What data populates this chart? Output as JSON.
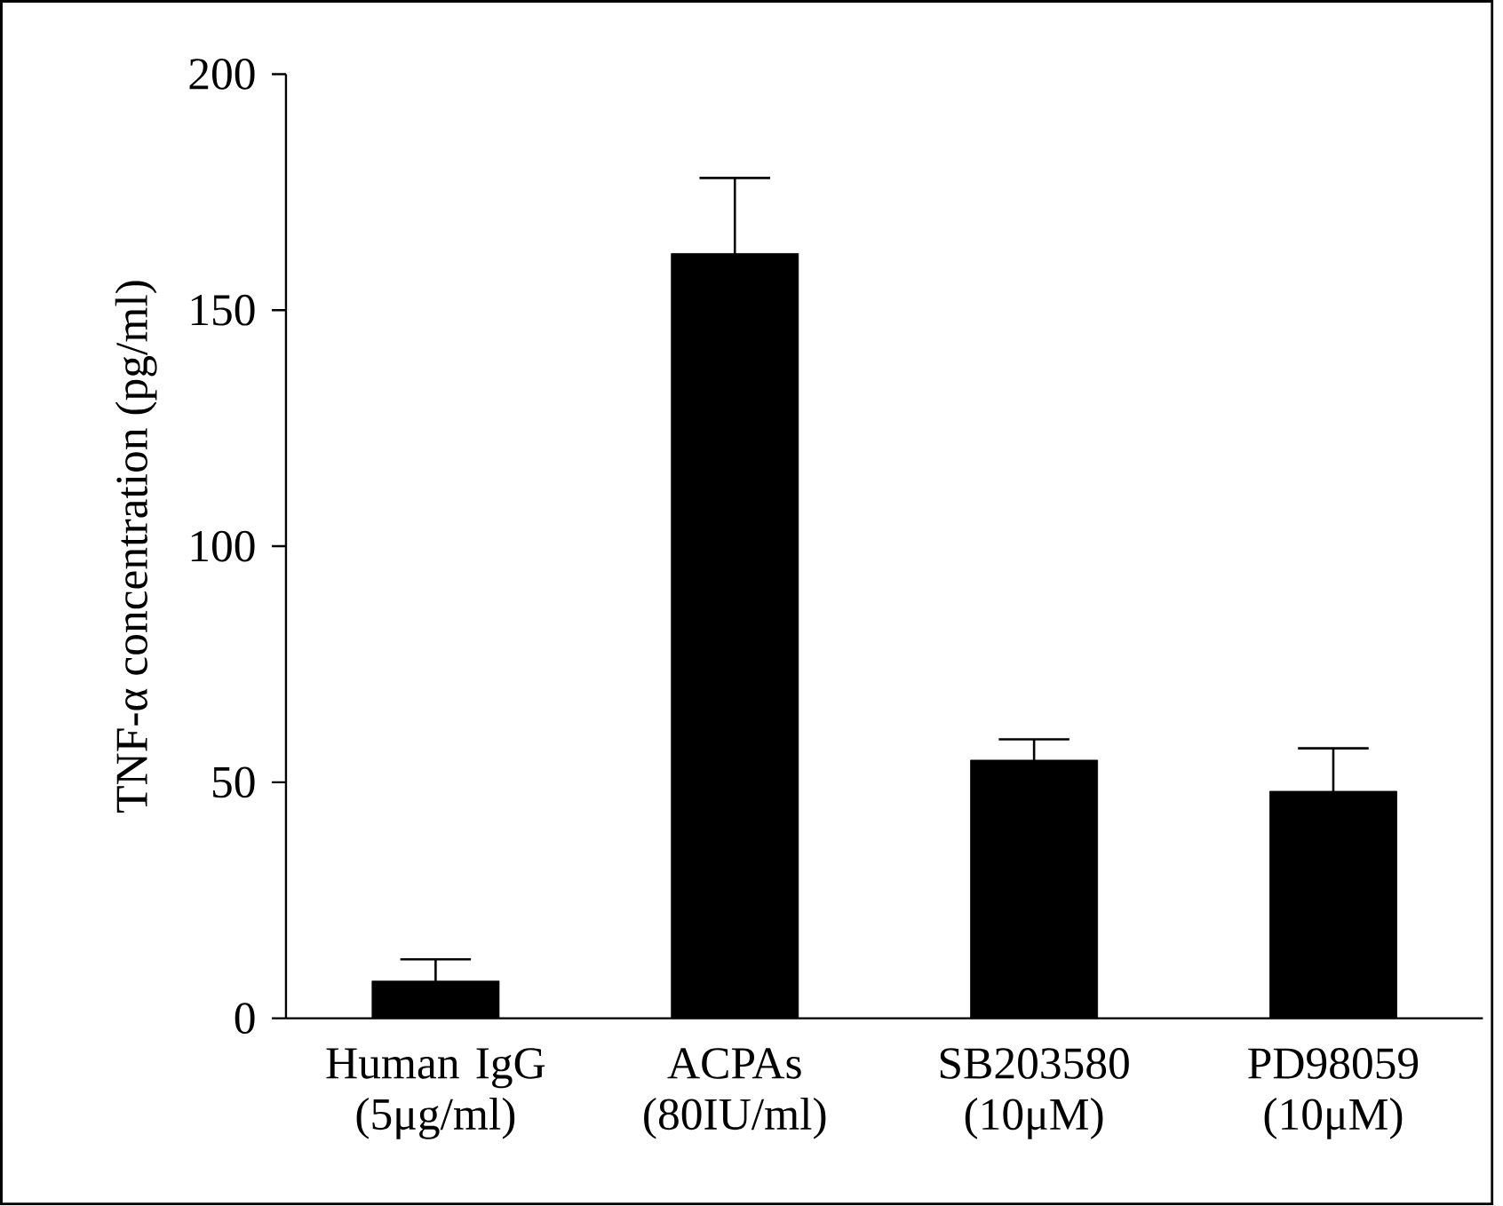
{
  "chart_data": {
    "type": "bar",
    "ylabel": "TNF-α concentration (pg/ml)",
    "categories": [
      "Human IgG (5μg/ml)",
      "ACPAs (80IU/ml)",
      "SB203580 (10μM)",
      "PD98059 (10μM)"
    ],
    "values": [
      7.9,
      162,
      54.7,
      48.1
    ],
    "errors": [
      4.6,
      16,
      4.4,
      9.1
    ],
    "color": "#000000",
    "ylim": [
      0,
      200
    ],
    "yticks": [
      0,
      50,
      100,
      150,
      200
    ]
  }
}
